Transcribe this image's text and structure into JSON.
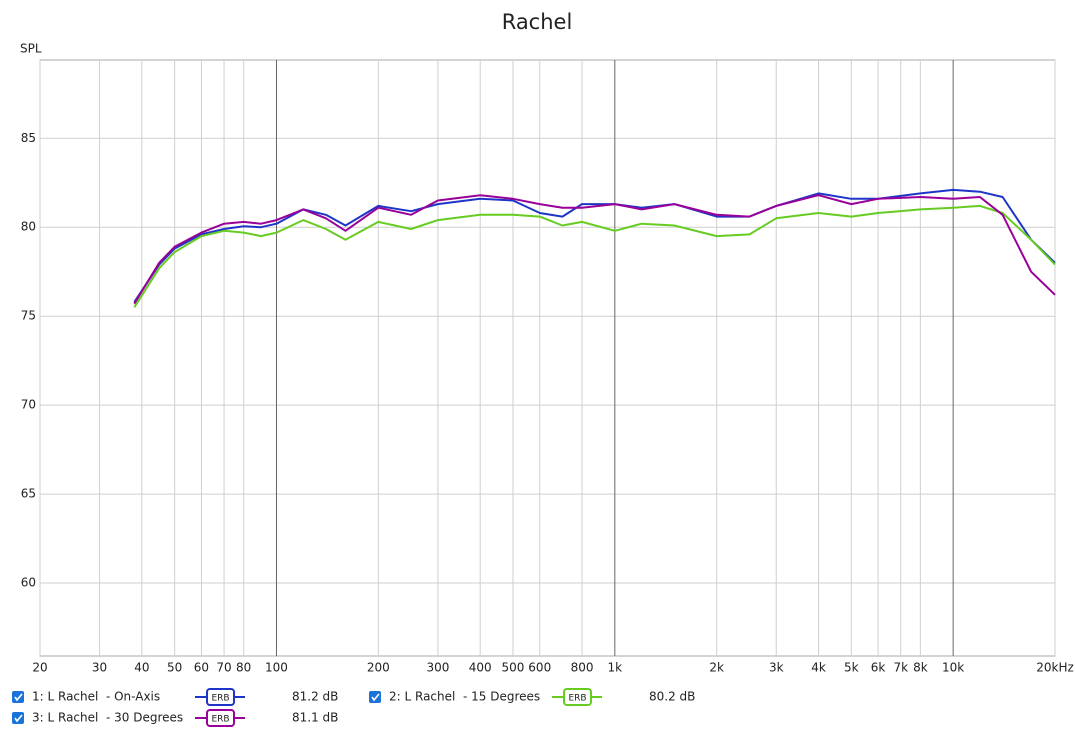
{
  "chart_data": {
    "type": "line",
    "title": "Rachel",
    "y_label": "SPL",
    "log_x": true,
    "grid": true,
    "xlim": [
      20,
      20000
    ],
    "ylim": [
      55.9,
      89.4
    ],
    "xticks": [
      20,
      30,
      40,
      50,
      60,
      70,
      80,
      100,
      200,
      300,
      400,
      500,
      600,
      800,
      {
        "value": 1000,
        "label": "1k"
      },
      {
        "value": 2000,
        "label": "2k"
      },
      {
        "value": 3000,
        "label": "3k"
      },
      {
        "value": 4000,
        "label": "4k"
      },
      {
        "value": 5000,
        "label": "5k"
      },
      {
        "value": 6000,
        "label": "6k"
      },
      {
        "value": 7000,
        "label": "7k"
      },
      {
        "value": 8000,
        "label": "8k"
      },
      {
        "value": 10000,
        "label": "10k"
      },
      {
        "value": 20000,
        "label": "20kHz"
      }
    ],
    "yticks": [
      60,
      65,
      70,
      75,
      80,
      85
    ],
    "x": [
      38,
      45,
      50,
      60,
      70,
      80,
      90,
      100,
      120,
      140,
      160,
      200,
      250,
      300,
      400,
      500,
      600,
      700,
      800,
      1000,
      1200,
      1500,
      2000,
      2500,
      3000,
      4000,
      5000,
      6000,
      8000,
      10000,
      12000,
      14000,
      17000,
      20000
    ],
    "series": [
      {
        "name": "1: L Rachel  - On-Axis",
        "color": "#1f35c8",
        "smoothing": "ERB",
        "level": "81.2 dB",
        "values": [
          75.8,
          77.9,
          78.8,
          79.6,
          79.9,
          80.05,
          80.0,
          80.2,
          81.0,
          80.7,
          80.1,
          81.2,
          80.9,
          81.3,
          81.6,
          81.5,
          80.8,
          80.6,
          81.3,
          81.3,
          81.1,
          81.3,
          80.6,
          80.6,
          81.2,
          81.9,
          81.6,
          81.6,
          81.9,
          82.1,
          82.0,
          81.7,
          79.3,
          78.0
        ]
      },
      {
        "name": "2: L Rachel  - 15 Degrees",
        "color": "#66cc22",
        "smoothing": "ERB",
        "level": "80.2 dB",
        "values": [
          75.5,
          77.7,
          78.6,
          79.5,
          79.8,
          79.7,
          79.5,
          79.7,
          80.4,
          79.9,
          79.3,
          80.3,
          79.9,
          80.4,
          80.7,
          80.7,
          80.6,
          80.1,
          80.3,
          79.8,
          80.2,
          80.1,
          79.5,
          79.6,
          80.5,
          80.8,
          80.6,
          80.8,
          81.0,
          81.1,
          81.2,
          80.8,
          79.3,
          77.9
        ]
      },
      {
        "name": "3: L Rachel  - 30 Degrees",
        "color": "#990099",
        "smoothing": "ERB",
        "level": "81.1 dB",
        "values": [
          75.7,
          78.0,
          78.9,
          79.7,
          80.2,
          80.3,
          80.2,
          80.4,
          81.0,
          80.5,
          79.8,
          81.1,
          80.7,
          81.5,
          81.8,
          81.6,
          81.3,
          81.1,
          81.1,
          81.3,
          81.0,
          81.3,
          80.7,
          80.6,
          81.2,
          81.8,
          81.3,
          81.6,
          81.7,
          81.6,
          81.7,
          80.7,
          77.5,
          76.2
        ]
      }
    ]
  }
}
